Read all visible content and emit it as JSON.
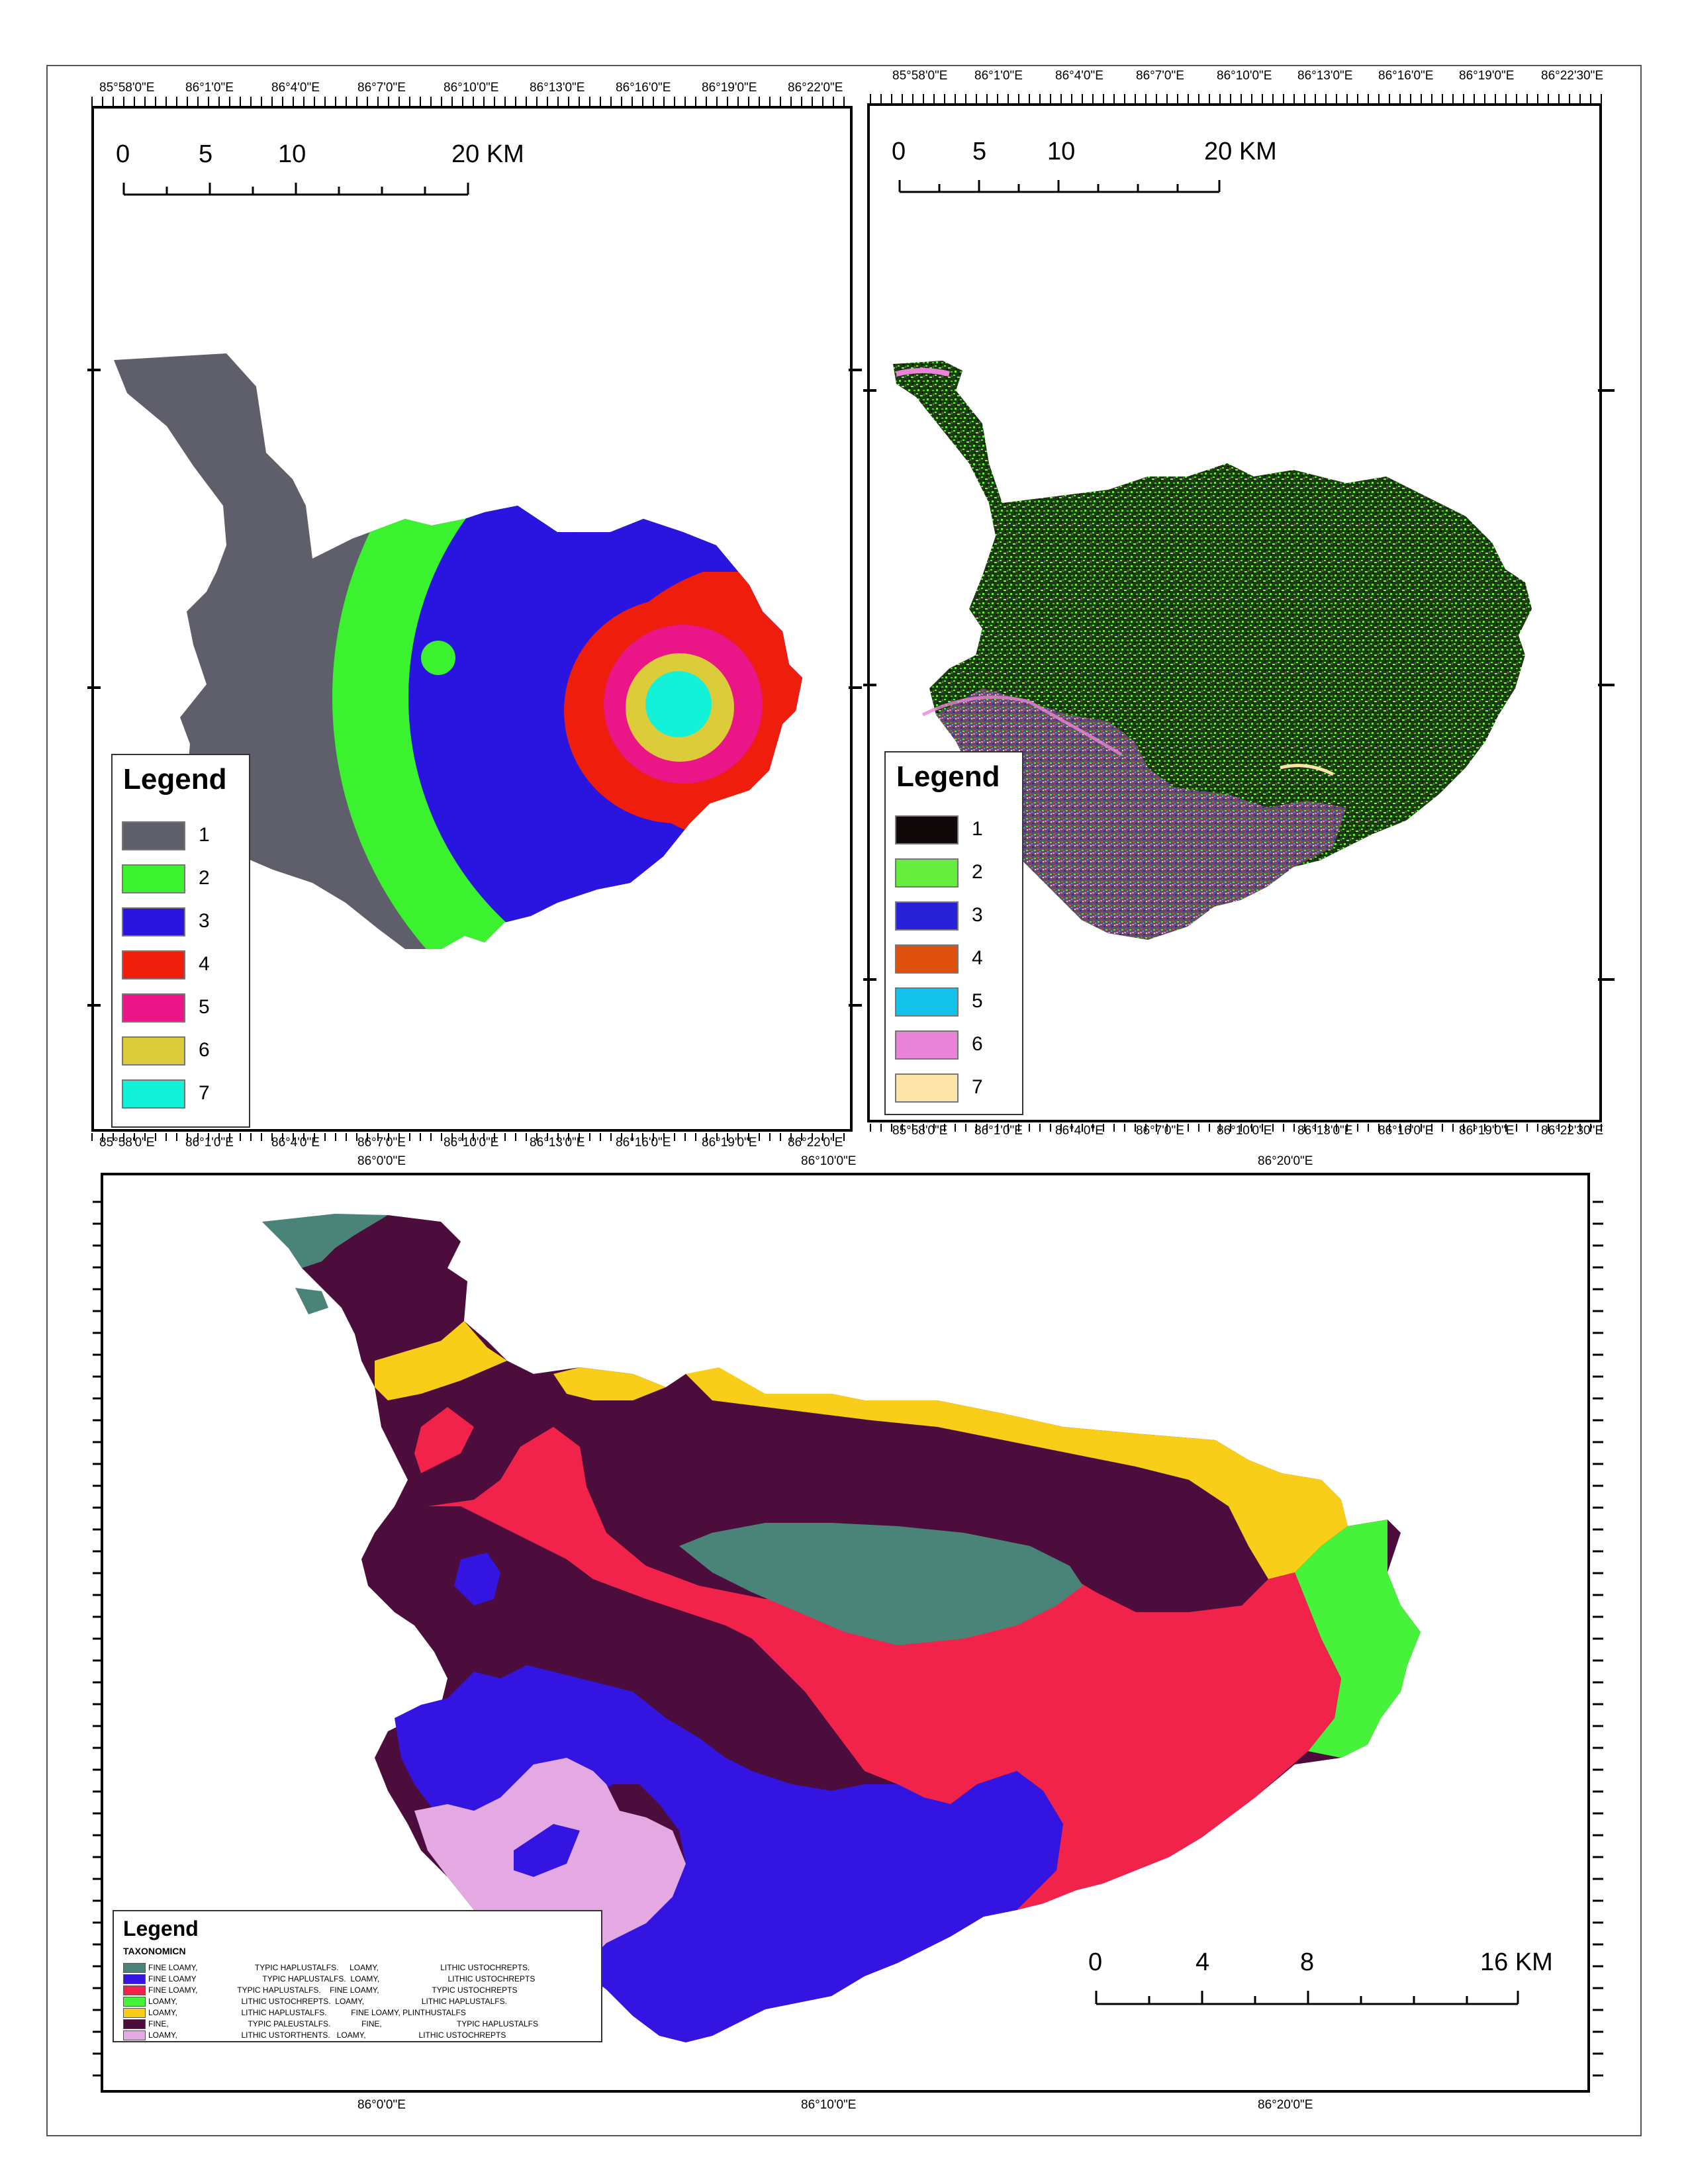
{
  "map1": {
    "top_coords": [
      "85°58'0\"E",
      "86°1'0\"E",
      "86°4'0\"E",
      "86°7'0\"E",
      "86°10'0\"E",
      "86°13'0\"E",
      "86°16'0\"E",
      "86°19'0\"E",
      "86°22'0\"E"
    ],
    "bottom_coords": [
      "85°58'0\"E",
      "86°1'0\"E",
      "86°4'0\"E",
      "86°7'0\"E",
      "86°10'0\"E",
      "86°13'0\"E",
      "86°16'0\"E",
      "86°19'0\"E",
      "86°22'0\"E"
    ],
    "scale_labels": [
      "0",
      "5",
      "10",
      "20 KM"
    ],
    "legend_title": "Legend",
    "legend_items": [
      {
        "label": "1",
        "color": "#5f5f6b"
      },
      {
        "label": "2",
        "color": "#3af22e"
      },
      {
        "label": "3",
        "color": "#2a14e0"
      },
      {
        "label": "4",
        "color": "#ef1d0c"
      },
      {
        "label": "5",
        "color": "#ea1687"
      },
      {
        "label": "6",
        "color": "#dccc3a"
      },
      {
        "label": "7",
        "color": "#12f2d8"
      }
    ]
  },
  "map2": {
    "top_coords": [
      "85°58'0\"E",
      "86°1'0\"E",
      "86°4'0\"E",
      "86°7'0\"E",
      "86°10'0\"E",
      "86°13'0\"E",
      "86°16'0\"E",
      "86°19'0\"E",
      "86°22'30\"E"
    ],
    "bottom_coords": [
      "85°58'0\"E",
      "86°1'0\"E",
      "86°4'0\"E",
      "86°7'0\"E",
      "86°10'0\"E",
      "86°13'0\"E",
      "86°16'0\"E",
      "86°19'0\"E",
      "86°22'30\"E"
    ],
    "scale_labels": [
      "0",
      "5",
      "10",
      "20 KM"
    ],
    "legend_title": "Legend",
    "legend_items": [
      {
        "label": "1",
        "color": "#100808"
      },
      {
        "label": "2",
        "color": "#66ee3e"
      },
      {
        "label": "3",
        "color": "#2820d6"
      },
      {
        "label": "4",
        "color": "#e0500c"
      },
      {
        "label": "5",
        "color": "#12c2ea"
      },
      {
        "label": "6",
        "color": "#ea84d8"
      },
      {
        "label": "7",
        "color": "#fde4a8"
      }
    ]
  },
  "map3": {
    "top_coords": [
      "86°0'0\"E",
      "86°10'0\"E",
      "86°20'0\"E"
    ],
    "bottom_coords": [
      "86°0'0\"E",
      "86°10'0\"E",
      "86°20'0\"E"
    ],
    "scale_labels": [
      "0",
      "4",
      "8",
      "16 KM"
    ],
    "legend_title": "Legend",
    "legend_subtitle": "TAXONOMICN",
    "legend_items": [
      {
        "color": "#4a8478",
        "label": "FINE LOAMY,                          TYPIC HAPLUSTALFS.     LOAMY,                            LITHIC USTOCHREPTS."
      },
      {
        "color": "#3414e0",
        "label": "FINE LOAMY                              TYPIC HAPLUSTALFS.  LOAMY,                               LITHIC USTOCHREPTS"
      },
      {
        "color": "#f2234a",
        "label": "FINE LOAMY,                  TYPIC HAPLUSTALFS.    FINE LOAMY,                        TYPIC USTOCHREPTS"
      },
      {
        "color": "#46f23a",
        "label": "LOAMY,                             LITHIC USTOCHREPTS.  LOAMY,                          LITHIC HAPLUSTALFS."
      },
      {
        "color": "#f8ce18",
        "label": "LOAMY,                             LITHIC HAPLUSTALFS.           FINE LOAMY, PLINTHUSTALFS"
      },
      {
        "color": "#4c0c3c",
        "label": "FINE,                                    TYPIC PALEUSTALFS.              FINE,                                  TYPIC HAPLUSTALFS"
      },
      {
        "color": "#e4a8e2",
        "label": "LOAMY,                             LITHIC USTORTHENTS.   LOAMY,                        LITHIC USTOCHREPTS"
      }
    ]
  }
}
